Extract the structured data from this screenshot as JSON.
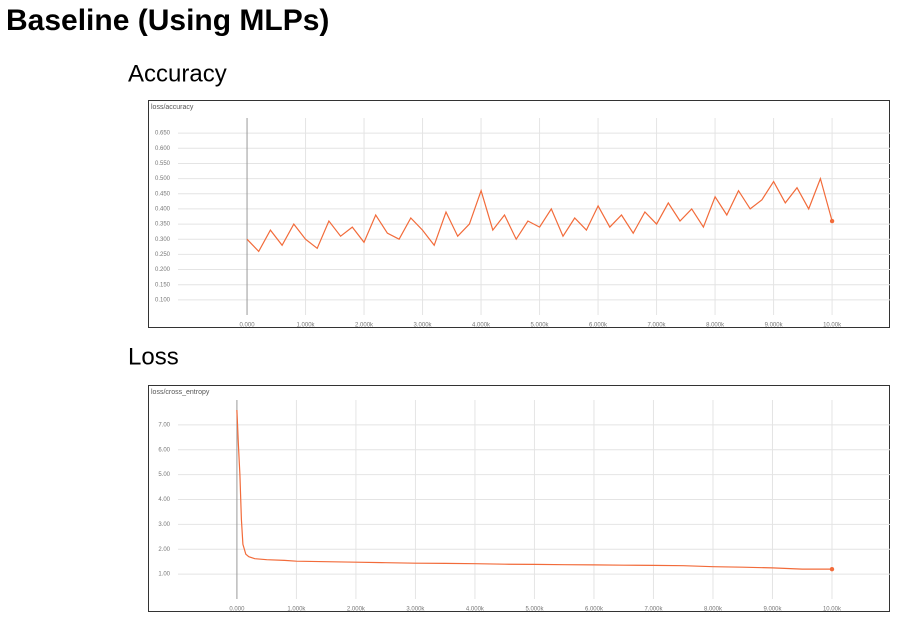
{
  "title": "Baseline (Using MLPs)",
  "sections": [
    "Accuracy",
    "Loss"
  ],
  "chart_data": [
    {
      "type": "line",
      "title": "loss/accuracy",
      "x": [
        0,
        200,
        400,
        600,
        800,
        1000,
        1200,
        1400,
        1600,
        1800,
        2000,
        2200,
        2400,
        2600,
        2800,
        3000,
        3200,
        3400,
        3600,
        3800,
        4000,
        4200,
        4400,
        4600,
        4800,
        5000,
        5200,
        5400,
        5600,
        5800,
        6000,
        6200,
        6400,
        6600,
        6800,
        7000,
        7200,
        7400,
        7600,
        7800,
        8000,
        8200,
        8400,
        8600,
        8800,
        9000,
        9200,
        9400,
        9600,
        9800,
        10000
      ],
      "series": [
        {
          "color": "#f26b3a",
          "values": [
            0.3,
            0.26,
            0.33,
            0.28,
            0.35,
            0.3,
            0.27,
            0.36,
            0.31,
            0.34,
            0.29,
            0.38,
            0.32,
            0.3,
            0.37,
            0.33,
            0.28,
            0.39,
            0.31,
            0.35,
            0.46,
            0.33,
            0.38,
            0.3,
            0.36,
            0.34,
            0.4,
            0.31,
            0.37,
            0.33,
            0.41,
            0.34,
            0.38,
            0.32,
            0.39,
            0.35,
            0.42,
            0.36,
            0.4,
            0.34,
            0.44,
            0.38,
            0.46,
            0.4,
            0.43,
            0.49,
            0.42,
            0.47,
            0.4,
            0.5,
            0.36
          ]
        }
      ],
      "xlim": [
        -1180,
        10990
      ],
      "xticks": [
        {
          "value": 0,
          "label": "0.000"
        },
        {
          "value": 1000,
          "label": "1.000k"
        },
        {
          "value": 2000,
          "label": "2.000k"
        },
        {
          "value": 3000,
          "label": "3.000k"
        },
        {
          "value": 4000,
          "label": "4.000k"
        },
        {
          "value": 5000,
          "label": "5.000k"
        },
        {
          "value": 6000,
          "label": "6.000k"
        },
        {
          "value": 7000,
          "label": "7.000k"
        },
        {
          "value": 8000,
          "label": "8.000k"
        },
        {
          "value": 9000,
          "label": "9.000k"
        },
        {
          "value": 10000,
          "label": "10.00k"
        }
      ],
      "ylim": [
        0.05,
        0.7
      ],
      "yticks": [
        {
          "value": 0.1,
          "label": "0.100"
        },
        {
          "value": 0.15,
          "label": "0.150"
        },
        {
          "value": 0.2,
          "label": "0.200"
        },
        {
          "value": 0.25,
          "label": "0.250"
        },
        {
          "value": 0.3,
          "label": "0.300"
        },
        {
          "value": 0.35,
          "label": "0.350"
        },
        {
          "value": 0.4,
          "label": "0.400"
        },
        {
          "value": 0.45,
          "label": "0.450"
        },
        {
          "value": 0.5,
          "label": "0.500"
        },
        {
          "value": 0.55,
          "label": "0.550"
        },
        {
          "value": 0.6,
          "label": "0.600"
        },
        {
          "value": 0.65,
          "label": "0.650"
        }
      ],
      "grid": true
    },
    {
      "type": "line",
      "title": "loss/cross_entropy",
      "x": [
        0,
        25,
        50,
        75,
        100,
        150,
        200,
        300,
        500,
        800,
        1000,
        1500,
        2000,
        2500,
        3000,
        3500,
        4000,
        4500,
        5000,
        5500,
        6000,
        6500,
        7000,
        7500,
        8000,
        8500,
        9000,
        9500,
        10000
      ],
      "series": [
        {
          "color": "#f26b3a",
          "values": [
            7.6,
            6.2,
            5.0,
            3.2,
            2.2,
            1.8,
            1.7,
            1.62,
            1.58,
            1.55,
            1.52,
            1.5,
            1.48,
            1.46,
            1.44,
            1.43,
            1.42,
            1.4,
            1.39,
            1.38,
            1.37,
            1.36,
            1.35,
            1.34,
            1.3,
            1.28,
            1.25,
            1.2,
            1.2
          ]
        }
      ],
      "xlim": [
        -990,
        10975
      ],
      "xticks": [
        {
          "value": 0,
          "label": "0.000"
        },
        {
          "value": 1000,
          "label": "1.000k"
        },
        {
          "value": 2000,
          "label": "2.000k"
        },
        {
          "value": 3000,
          "label": "3.000k"
        },
        {
          "value": 4000,
          "label": "4.000k"
        },
        {
          "value": 5000,
          "label": "5.000k"
        },
        {
          "value": 6000,
          "label": "6.000k"
        },
        {
          "value": 7000,
          "label": "7.000k"
        },
        {
          "value": 8000,
          "label": "8.000k"
        },
        {
          "value": 9000,
          "label": "9.000k"
        },
        {
          "value": 10000,
          "label": "10.00k"
        }
      ],
      "ylim": [
        0,
        8
      ],
      "yticks": [
        {
          "value": 1,
          "label": "1.00"
        },
        {
          "value": 2,
          "label": "2.00"
        },
        {
          "value": 3,
          "label": "3.00"
        },
        {
          "value": 4,
          "label": "4.00"
        },
        {
          "value": 5,
          "label": "5.00"
        },
        {
          "value": 6,
          "label": "6.00"
        },
        {
          "value": 7,
          "label": "7.00"
        }
      ],
      "grid": true
    }
  ]
}
